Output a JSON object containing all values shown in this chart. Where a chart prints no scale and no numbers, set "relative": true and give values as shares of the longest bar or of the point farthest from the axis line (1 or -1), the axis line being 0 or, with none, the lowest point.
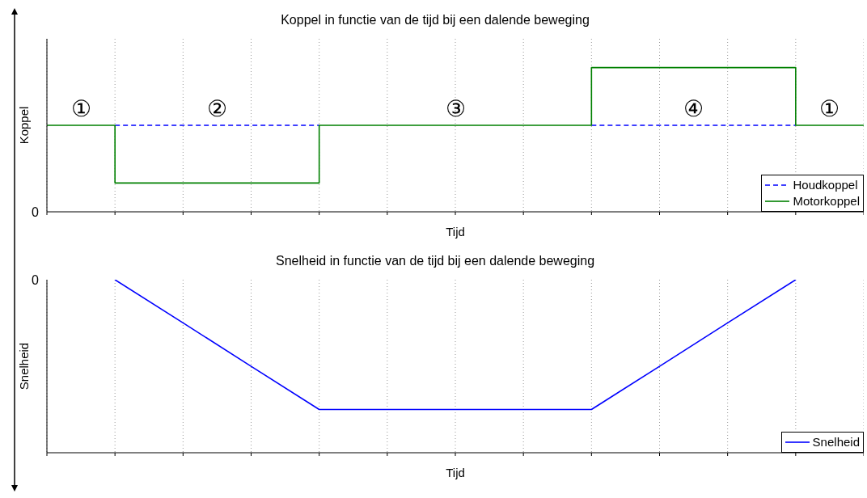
{
  "chart_data": [
    {
      "type": "line",
      "title": "Koppel in functie van de tijd bij een dalende beweging",
      "xlabel": "Tijd",
      "ylabel": "Koppel",
      "relative": true,
      "categories": [
        null,
        null,
        null,
        null,
        null,
        null,
        null,
        null,
        null,
        null,
        null,
        null,
        null
      ],
      "grid": true,
      "legend": "bottom right",
      "marker": "none",
      "series": [
        {
          "name": "Houdkoppel",
          "type": "line",
          "line_style": "dashed",
          "color": "#0000ff",
          "values": [
            null,
            0.6,
            0.6,
            0.6,
            0.6,
            null,
            null,
            null,
            0.6,
            0.6,
            0.6,
            0.6,
            null
          ]
        },
        {
          "name": "Motorkoppel",
          "type": "step",
          "line_style": "solid",
          "color": "#008000",
          "values": [
            0.6,
            0.2,
            0.2,
            0.2,
            0.6,
            0.6,
            0.6,
            0.6,
            1,
            1,
            1,
            0.6,
            0.6
          ]
        }
      ],
      "annotations": [
        "①",
        "②",
        "③",
        "④",
        "①",
        "0"
      ]
    },
    {
      "type": "line",
      "title": "Snelheid in functie van de tijd bij een dalende beweging",
      "xlabel": "Tijd",
      "ylabel": "Snelheid",
      "relative": true,
      "categories": [
        null,
        null,
        null,
        null,
        null,
        null,
        null,
        null,
        null,
        null,
        null,
        null,
        null
      ],
      "grid": true,
      "legend": "bottom right",
      "marker": "none",
      "series": [
        {
          "name": "Snelheid",
          "type": "line",
          "line_style": "solid",
          "color": "#0000ff",
          "values": [
            null,
            0,
            -0.333,
            -0.667,
            -1,
            -1,
            -1,
            -1,
            -1,
            -0.667,
            -0.333,
            0,
            null
          ]
        }
      ],
      "annotations": [
        "0"
      ]
    }
  ]
}
